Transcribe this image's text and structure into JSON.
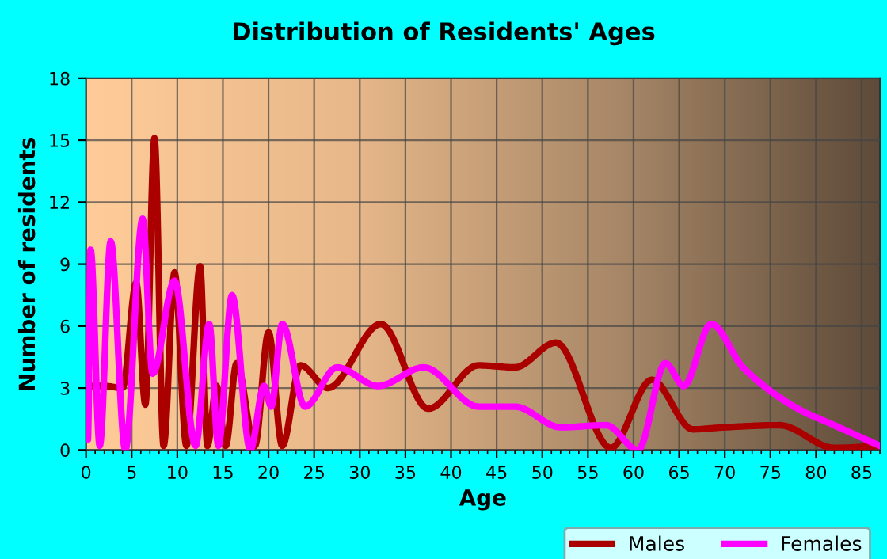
{
  "chart_data": {
    "type": "line",
    "title": "Distribution of Residents' Ages",
    "xlabel": "Age",
    "ylabel": "Number of residents",
    "xlim": [
      0,
      87
    ],
    "xticks": [
      0,
      5,
      10,
      15,
      20,
      25,
      30,
      35,
      40,
      45,
      50,
      55,
      60,
      65,
      70,
      75,
      80,
      85
    ],
    "ylim": [
      0,
      18
    ],
    "yticks": [
      0,
      3,
      6,
      9,
      12,
      15,
      18
    ],
    "grid": true,
    "legend": "bottom",
    "marker": "none",
    "line_style": "solid",
    "series": [
      {
        "name": "Males",
        "color": "#aa0000",
        "x": [
          0,
          2,
          4,
          5.5,
          6.5,
          7.5,
          8.5,
          9.7,
          11,
          12.5,
          13.3,
          14.3,
          15.3,
          16.5,
          18.5,
          20,
          21.5,
          23.5,
          26.5,
          32.3,
          37.5,
          43,
          47,
          51.5,
          57.5,
          62,
          66.5,
          70,
          76,
          82,
          87
        ],
        "values": [
          3.1,
          3.1,
          3.0,
          8.1,
          2.2,
          15.1,
          0.2,
          8.6,
          0.2,
          8.9,
          0.2,
          3.1,
          0.2,
          4.2,
          0.2,
          5.7,
          0.2,
          4.1,
          3.0,
          6.1,
          2.0,
          4.1,
          4.0,
          5.2,
          0.1,
          3.4,
          1.0,
          1.1,
          1.2,
          0.1,
          0.2
        ]
      },
      {
        "name": "Females",
        "color": "#ff00ff",
        "x": [
          0,
          0.2,
          0.5,
          1.5,
          2.7,
          4.3,
          6.2,
          7.3,
          9.7,
          12,
          13.5,
          14.5,
          16,
          18,
          19.5,
          20.3,
          21.5,
          24,
          27.5,
          32,
          37,
          43,
          47,
          52,
          57,
          60.5,
          63.5,
          65.5,
          68.5,
          72,
          78,
          82,
          87
        ],
        "values": [
          7.0,
          0.5,
          9.7,
          0.2,
          10.1,
          0.0,
          11.2,
          3.7,
          8.2,
          0.2,
          6.1,
          0.2,
          7.5,
          0.0,
          3.1,
          2.1,
          6.1,
          2.1,
          4.0,
          3.1,
          4.0,
          2.1,
          2.1,
          1.1,
          1.2,
          0.0,
          4.2,
          3.1,
          6.1,
          4.0,
          2.0,
          1.2,
          0.2
        ]
      }
    ]
  }
}
